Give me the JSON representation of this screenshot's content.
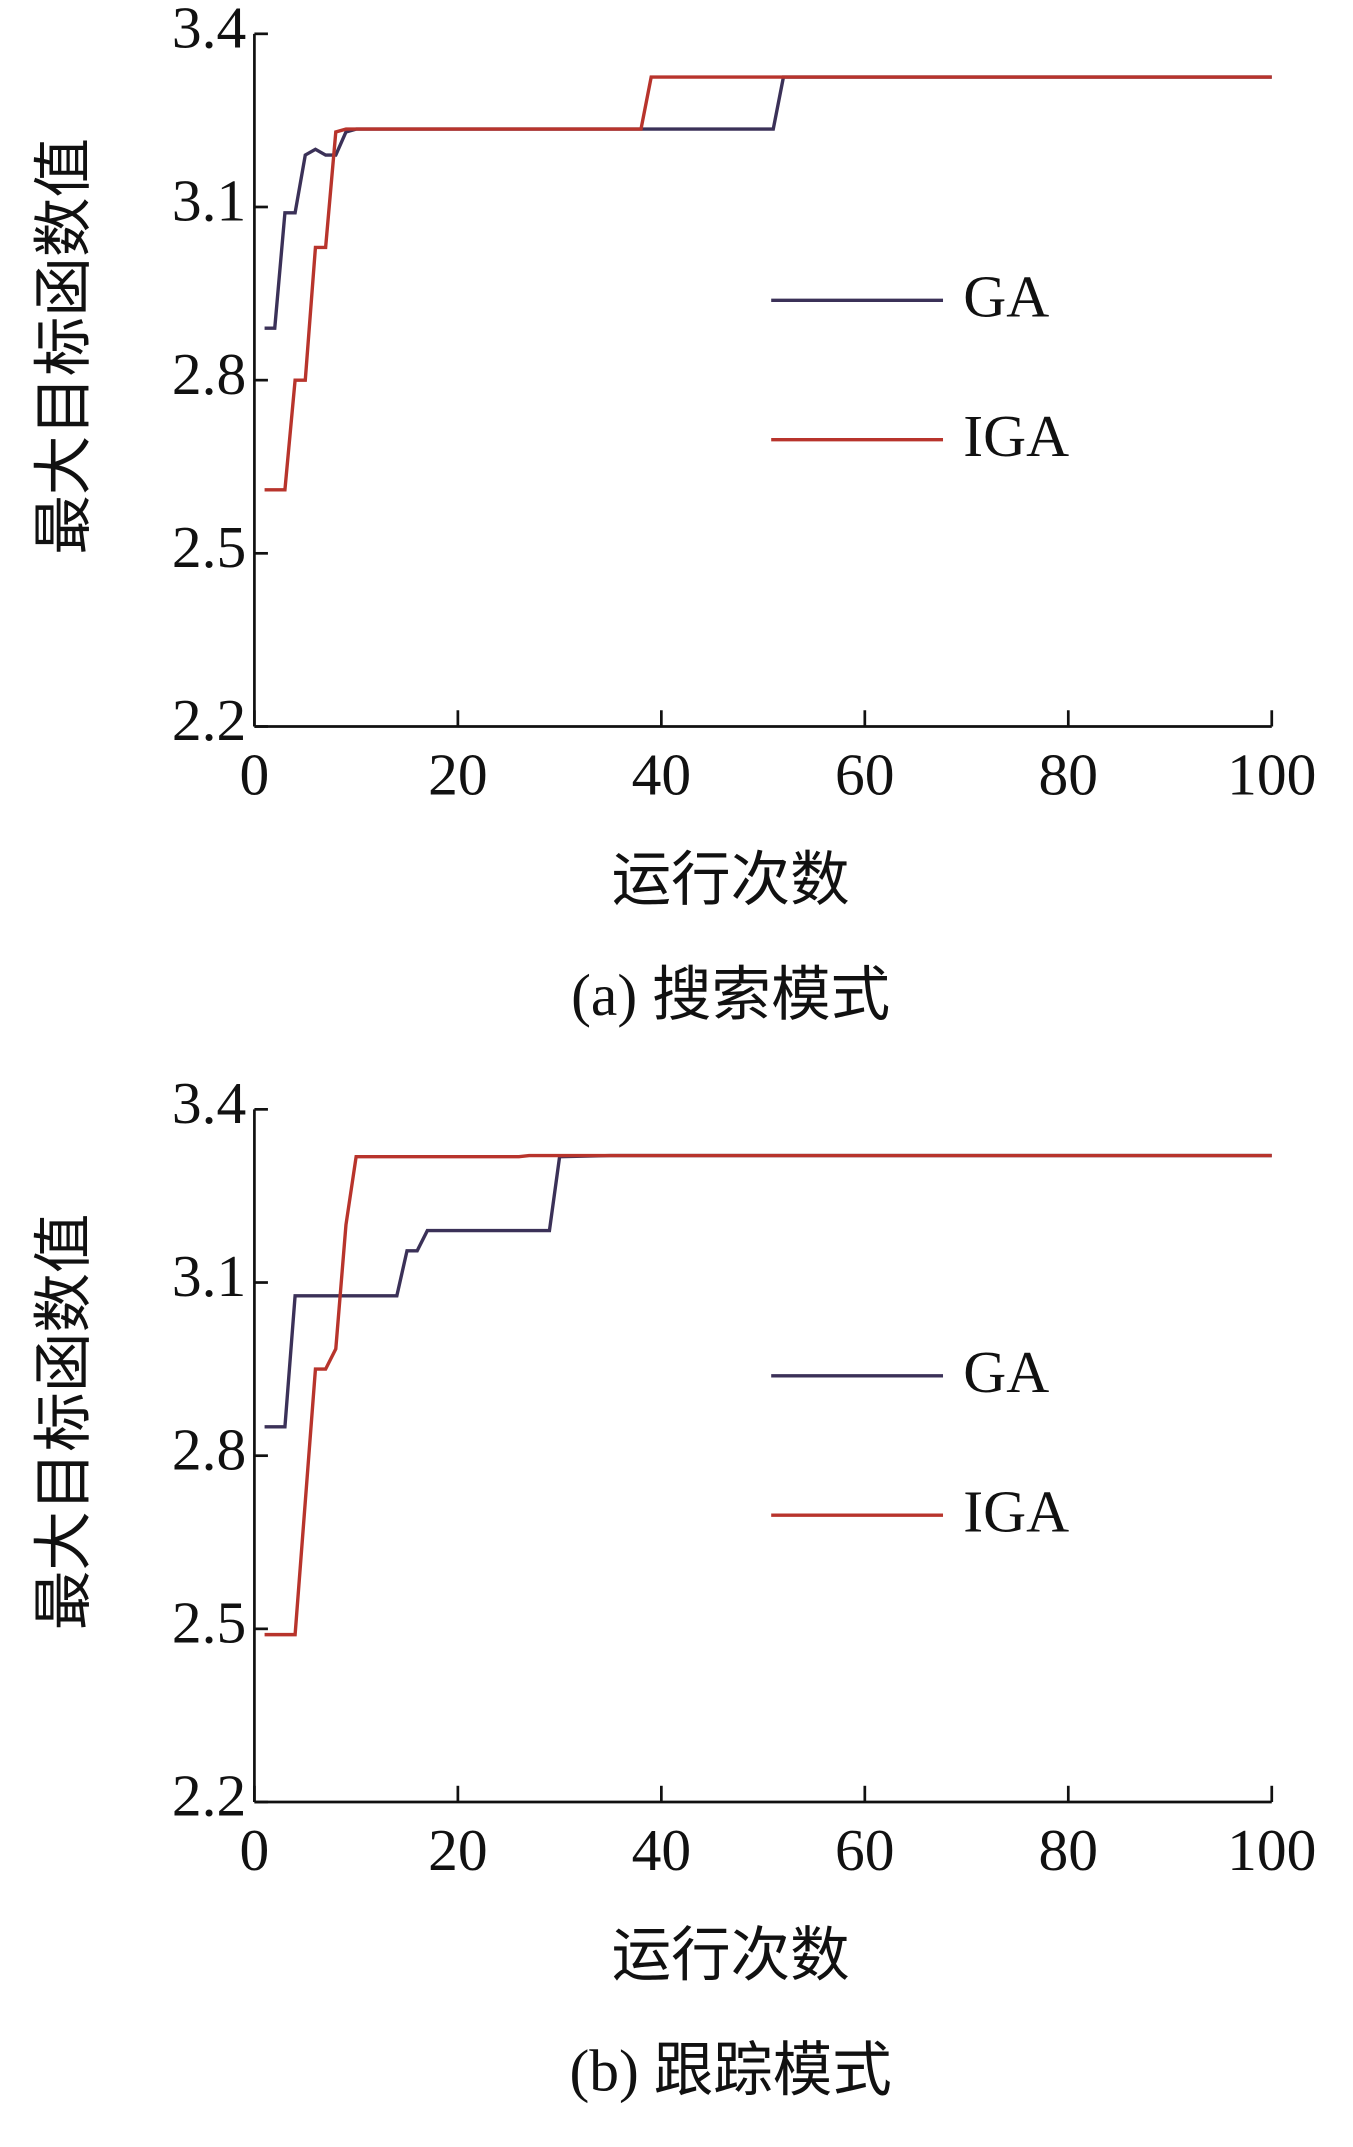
{
  "chart_data": [
    {
      "type": "line",
      "y_label": "最大目标函数值",
      "x_label": "运行次数",
      "caption": "(a) 搜索模式",
      "xlim": [
        0,
        100
      ],
      "ylim": [
        2.2,
        3.4
      ],
      "xticks": [
        0,
        20,
        40,
        60,
        80,
        100
      ],
      "yticks": [
        2.2,
        2.5,
        2.8,
        3.1,
        3.4
      ],
      "series": [
        {
          "name": "GA",
          "color": "#3b3158",
          "x": [
            1,
            2,
            3,
            4,
            5,
            6,
            7,
            8,
            9,
            10,
            51,
            52,
            100
          ],
          "values": [
            2.89,
            2.89,
            3.09,
            3.09,
            3.19,
            3.2,
            3.19,
            3.19,
            3.23,
            3.235,
            3.235,
            3.325,
            3.325
          ]
        },
        {
          "name": "IGA",
          "color": "#b8342c",
          "x": [
            1,
            3,
            4,
            5,
            6,
            7,
            8,
            9,
            38,
            39,
            100
          ],
          "values": [
            2.61,
            2.61,
            2.8,
            2.8,
            3.03,
            3.03,
            3.23,
            3.235,
            3.235,
            3.325,
            3.325
          ]
        }
      ]
    },
    {
      "type": "line",
      "y_label": "最大目标函数值",
      "x_label": "运行次数",
      "caption": "(b) 跟踪模式",
      "xlim": [
        0,
        100
      ],
      "ylim": [
        2.2,
        3.4
      ],
      "xticks": [
        0,
        20,
        40,
        60,
        80,
        100
      ],
      "yticks": [
        2.2,
        2.5,
        2.8,
        3.1,
        3.4
      ],
      "series": [
        {
          "name": "GA",
          "color": "#3b3158",
          "x": [
            1,
            3,
            4,
            14,
            15,
            16,
            17,
            18,
            29,
            30,
            35,
            100
          ],
          "values": [
            2.85,
            2.85,
            3.077,
            3.077,
            3.155,
            3.155,
            3.19,
            3.19,
            3.19,
            3.318,
            3.32,
            3.32
          ]
        },
        {
          "name": "IGA",
          "color": "#b8342c",
          "x": [
            1,
            4,
            6,
            7,
            8,
            9,
            10,
            26,
            27,
            100
          ],
          "values": [
            2.49,
            2.49,
            2.95,
            2.95,
            2.985,
            3.2,
            3.318,
            3.318,
            3.32,
            3.32
          ]
        }
      ]
    }
  ]
}
